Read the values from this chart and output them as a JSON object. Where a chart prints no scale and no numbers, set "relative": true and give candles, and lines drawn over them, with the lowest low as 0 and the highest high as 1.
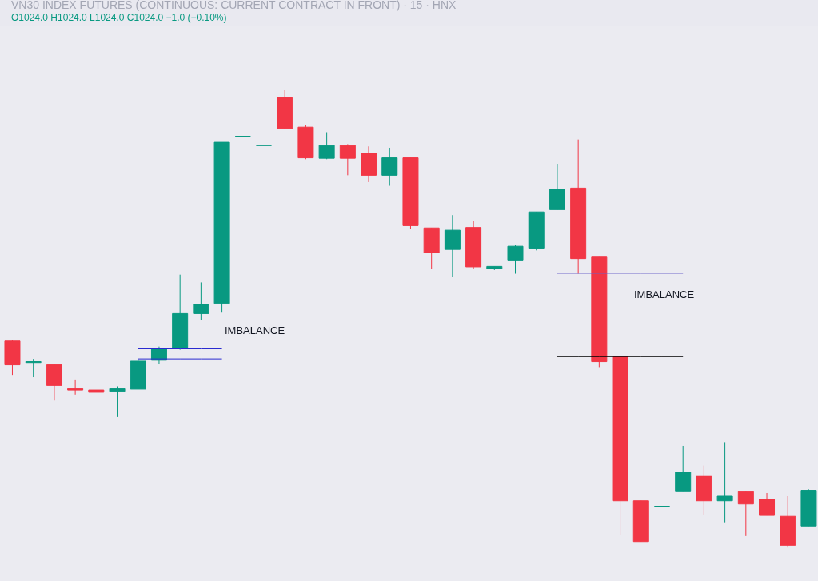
{
  "chart_data": {
    "type": "candlestick",
    "relative": true,
    "title": "VN30 INDEX FUTURES (CONTINUOUS: CURRENT CONTRACT IN FRONT) · 15 · HNX",
    "subtitle": "O1024.0 H1024.0 L1024.0 C1024.0 −1.0 (−0.10%)",
    "categories": [
      null,
      null,
      null,
      null,
      null,
      null,
      null,
      null,
      null,
      null,
      null,
      null,
      null,
      null,
      null,
      null,
      null,
      null,
      null,
      null,
      null,
      null,
      null,
      null,
      null,
      null,
      null,
      null,
      null,
      null,
      null,
      null,
      null,
      null,
      null,
      null,
      null,
      null,
      null
    ],
    "ohlc": [
      [
        0.451,
        0.454,
        0.377,
        0.399
      ],
      [
        0.404,
        0.412,
        0.372,
        0.406
      ],
      [
        0.399,
        0.401,
        0.321,
        0.354
      ],
      [
        0.347,
        0.367,
        0.334,
        0.344
      ],
      [
        0.344,
        0.344,
        0.339,
        0.339
      ],
      [
        0.341,
        0.352,
        0.285,
        0.347
      ],
      [
        0.346,
        0.412,
        0.346,
        0.407
      ],
      [
        0.409,
        0.439,
        0.401,
        0.434
      ],
      [
        0.436,
        0.596,
        0.432,
        0.511
      ],
      [
        0.511,
        0.579,
        0.497,
        0.531
      ],
      [
        0.533,
        0.885,
        0.513,
        0.885
      ],
      [
        0.898,
        0.898,
        0.898,
        0.898
      ],
      [
        0.878,
        0.878,
        0.878,
        0.878
      ],
      [
        0.982,
        1.0,
        0.915,
        0.915
      ],
      [
        0.918,
        0.923,
        0.848,
        0.851
      ],
      [
        0.85,
        0.907,
        0.848,
        0.878
      ],
      [
        0.878,
        0.881,
        0.813,
        0.85
      ],
      [
        0.861,
        0.876,
        0.798,
        0.813
      ],
      [
        0.813,
        0.873,
        0.79,
        0.851
      ],
      [
        0.851,
        0.851,
        0.696,
        0.703
      ],
      [
        0.698,
        0.698,
        0.609,
        0.644
      ],
      [
        0.651,
        0.726,
        0.591,
        0.693
      ],
      [
        0.699,
        0.713,
        0.609,
        0.613
      ],
      [
        0.609,
        0.614,
        0.606,
        0.614
      ],
      [
        0.628,
        0.661,
        0.598,
        0.658
      ],
      [
        0.654,
        0.733,
        0.649,
        0.733
      ],
      [
        0.738,
        0.838,
        0.738,
        0.783
      ],
      [
        0.785,
        0.891,
        0.598,
        0.631
      ],
      [
        0.636,
        0.636,
        0.394,
        0.406
      ],
      [
        0.417,
        0.417,
        0.028,
        0.102
      ],
      [
        0.102,
        0.102,
        0.013,
        0.013
      ],
      [
        0.09,
        0.09,
        0.09,
        0.09
      ],
      [
        0.122,
        0.222,
        0.122,
        0.165
      ],
      [
        0.157,
        0.179,
        0.072,
        0.102
      ],
      [
        0.102,
        0.23,
        0.055,
        0.112
      ],
      [
        0.122,
        0.122,
        0.025,
        0.095
      ],
      [
        0.105,
        0.119,
        0.07,
        0.07
      ],
      [
        0.068,
        0.112,
        0.0,
        0.005
      ],
      [
        0.047,
        0.127,
        0.047,
        0.125
      ]
    ],
    "colors": [
      "#f23645",
      "#089981",
      "#f23645",
      "#f23645",
      "#f23645",
      "#089981",
      "#089981",
      "#089981",
      "#089981",
      "#089981",
      "#089981",
      "#089981",
      "#089981",
      "#f23645",
      "#f23645",
      "#089981",
      "#f23645",
      "#f23645",
      "#089981",
      "#f23645",
      "#f23645",
      "#089981",
      "#f23645",
      "#089981",
      "#089981",
      "#089981",
      "#089981",
      "#f23645",
      "#f23645",
      "#f23645",
      "#f23645",
      "#089981",
      "#089981",
      "#f23645",
      "#089981",
      "#f23645",
      "#f23645",
      "#f23645",
      "#089981"
    ],
    "series": [
      {
        "type": "line",
        "color": "#2a2ad0",
        "values": [
          null,
          null,
          null,
          null,
          null,
          null,
          0.434,
          0.434,
          0.434,
          0.434,
          0.434,
          null,
          null,
          null,
          null,
          null,
          null,
          null,
          null,
          null,
          null,
          null,
          null,
          null,
          null,
          null,
          null,
          null,
          null,
          null,
          null,
          null,
          null,
          null,
          null,
          null,
          null,
          null,
          null
        ]
      },
      {
        "type": "line",
        "color": "#2a2ad0",
        "values": [
          null,
          null,
          null,
          null,
          null,
          null,
          0.412,
          0.412,
          0.412,
          0.412,
          0.412,
          null,
          null,
          null,
          null,
          null,
          null,
          null,
          null,
          null,
          null,
          null,
          null,
          null,
          null,
          null,
          null,
          null,
          null,
          null,
          null,
          null,
          null,
          null,
          null,
          null,
          null,
          null,
          null
        ]
      },
      {
        "type": "line",
        "color": "#6a63c8",
        "values": [
          null,
          null,
          null,
          null,
          null,
          null,
          null,
          null,
          null,
          null,
          null,
          null,
          null,
          null,
          null,
          null,
          null,
          null,
          null,
          null,
          null,
          null,
          null,
          null,
          null,
          null,
          0.599,
          0.599,
          0.599,
          0.599,
          0.599,
          0.599,
          0.599,
          null,
          null,
          null,
          null,
          null,
          null
        ]
      },
      {
        "type": "line",
        "color": "#000000",
        "values": [
          null,
          null,
          null,
          null,
          null,
          null,
          null,
          null,
          null,
          null,
          null,
          null,
          null,
          null,
          null,
          null,
          null,
          null,
          null,
          null,
          null,
          null,
          null,
          null,
          null,
          null,
          0.417,
          0.417,
          0.417,
          0.417,
          0.417,
          0.417,
          0.417,
          null,
          null,
          null,
          null,
          null,
          null
        ]
      }
    ],
    "annotations": [
      "IMBALANCE",
      "IMBALANCE"
    ]
  }
}
